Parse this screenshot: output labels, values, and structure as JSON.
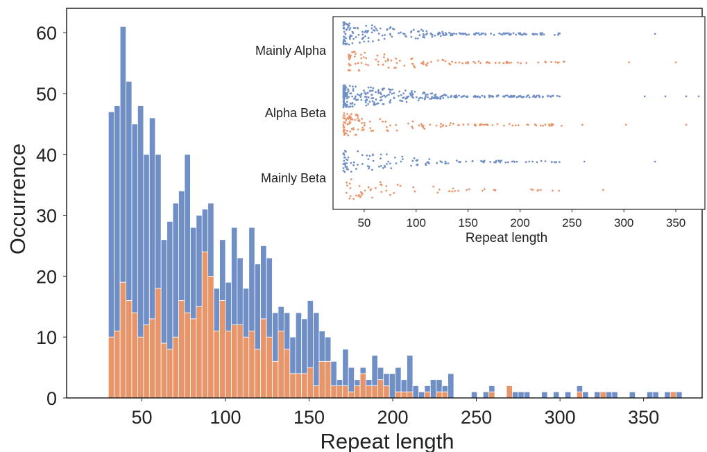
{
  "colors": {
    "blue": "#6f8fc6",
    "orange": "#e8956a",
    "bar_edge": "#ffffff",
    "axis": "#222222"
  },
  "chart_data": [
    {
      "type": "bar",
      "stacked": true,
      "xlabel": "Repeat length",
      "ylabel": "Occurrence",
      "xlim": [
        5,
        385
      ],
      "ylim": [
        0,
        64
      ],
      "xticks": [
        50,
        100,
        150,
        200,
        250,
        300,
        350
      ],
      "yticks": [
        0,
        10,
        20,
        30,
        40,
        50,
        60
      ],
      "bin_width": 3.5,
      "bin_starts": [
        30,
        33.5,
        37,
        40.5,
        44,
        47.5,
        51,
        54.5,
        58,
        61.5,
        65,
        68.5,
        72,
        75.5,
        79,
        82.5,
        86,
        89.5,
        93,
        96.5,
        100,
        103.5,
        107,
        110.5,
        114,
        117.5,
        121,
        124.5,
        128,
        131.5,
        135,
        138.5,
        142,
        145.5,
        149,
        152.5,
        156,
        159.5,
        163,
        166.5,
        170,
        173.5,
        177,
        180.5,
        184,
        187.5,
        191,
        194.5,
        198,
        201.5,
        205,
        208.5,
        212,
        215.5,
        219,
        222.5,
        226,
        229.5,
        233,
        247,
        254,
        257.5,
        268,
        271.5,
        275,
        278.5,
        289,
        296,
        303,
        310,
        313.5,
        320.5,
        324,
        327.5,
        331,
        341.5,
        352,
        355.5,
        362.5,
        366,
        369.5
      ],
      "series": [
        {
          "name": "",
          "color": "#e8956a",
          "values": [
            10,
            11,
            19,
            16,
            14,
            10,
            12,
            13,
            18,
            9,
            8,
            10,
            16,
            14,
            13,
            15,
            24,
            20,
            11,
            16,
            11,
            12,
            12,
            10,
            11,
            8,
            13,
            10,
            6,
            11,
            8,
            4,
            4,
            4,
            5,
            2,
            6,
            6,
            2,
            2,
            2,
            1,
            2,
            4,
            2,
            2,
            3,
            2,
            0,
            1,
            1,
            1,
            0,
            0,
            1,
            0,
            1,
            1,
            0,
            0,
            0,
            1,
            2,
            0,
            0,
            0,
            0,
            0,
            0,
            1,
            0,
            0,
            1,
            0,
            0,
            0,
            0,
            0,
            0,
            1,
            0
          ]
        },
        {
          "name": "",
          "color": "#6f8fc6",
          "values": [
            37,
            37,
            42,
            36,
            31,
            38,
            28,
            33,
            22,
            17,
            21,
            22,
            18,
            26,
            15,
            15,
            7,
            12,
            7,
            10,
            8,
            16,
            11,
            8,
            17,
            14,
            12,
            13,
            8,
            4,
            6,
            6,
            10,
            9,
            11,
            12,
            5,
            4,
            4,
            1,
            6,
            4,
            1,
            1,
            1,
            5,
            2,
            2,
            4,
            4,
            2,
            6,
            2,
            1,
            1,
            3,
            2,
            1,
            4,
            1,
            1,
            1,
            0,
            1,
            1,
            1,
            1,
            1,
            1,
            1,
            1,
            1,
            0,
            1,
            1,
            1,
            1,
            1,
            1,
            0,
            1
          ]
        }
      ]
    },
    {
      "type": "scatter",
      "xlabel": "Repeat length",
      "ylabel": "",
      "xlim": [
        20,
        378
      ],
      "xticks": [
        50,
        100,
        150,
        200,
        250,
        300,
        350
      ],
      "rows": [
        {
          "label": "Mainly Alpha",
          "series_colors": [
            "#6f8fc6",
            "#e8956a"
          ]
        },
        {
          "label": "Alpha Beta",
          "series_colors": [
            "#6f8fc6",
            "#e8956a"
          ]
        },
        {
          "label": "Mainly Beta",
          "series_colors": [
            "#6f8fc6",
            "#e8956a"
          ]
        }
      ],
      "point_ranges": [
        {
          "row": "Mainly Alpha",
          "color": "#6f8fc6",
          "min": 30,
          "max": 330,
          "count": 220,
          "outliers": [
            215,
            330
          ]
        },
        {
          "row": "Mainly Alpha",
          "color": "#e8956a",
          "min": 35,
          "max": 350,
          "count": 110,
          "outliers": [
            225,
            305,
            350
          ]
        },
        {
          "row": "Alpha Beta",
          "color": "#6f8fc6",
          "min": 30,
          "max": 372,
          "count": 330,
          "outliers": [
            320,
            340,
            360,
            372
          ]
        },
        {
          "row": "Alpha Beta",
          "color": "#e8956a",
          "min": 30,
          "max": 360,
          "count": 140,
          "outliers": [
            260,
            302,
            360
          ]
        },
        {
          "row": "Mainly Beta",
          "color": "#6f8fc6",
          "min": 30,
          "max": 330,
          "count": 120,
          "outliers": [
            212,
            262,
            330
          ]
        },
        {
          "row": "Mainly Beta",
          "color": "#e8956a",
          "min": 33,
          "max": 280,
          "count": 60,
          "outliers": [
            220,
            280
          ]
        }
      ]
    }
  ]
}
